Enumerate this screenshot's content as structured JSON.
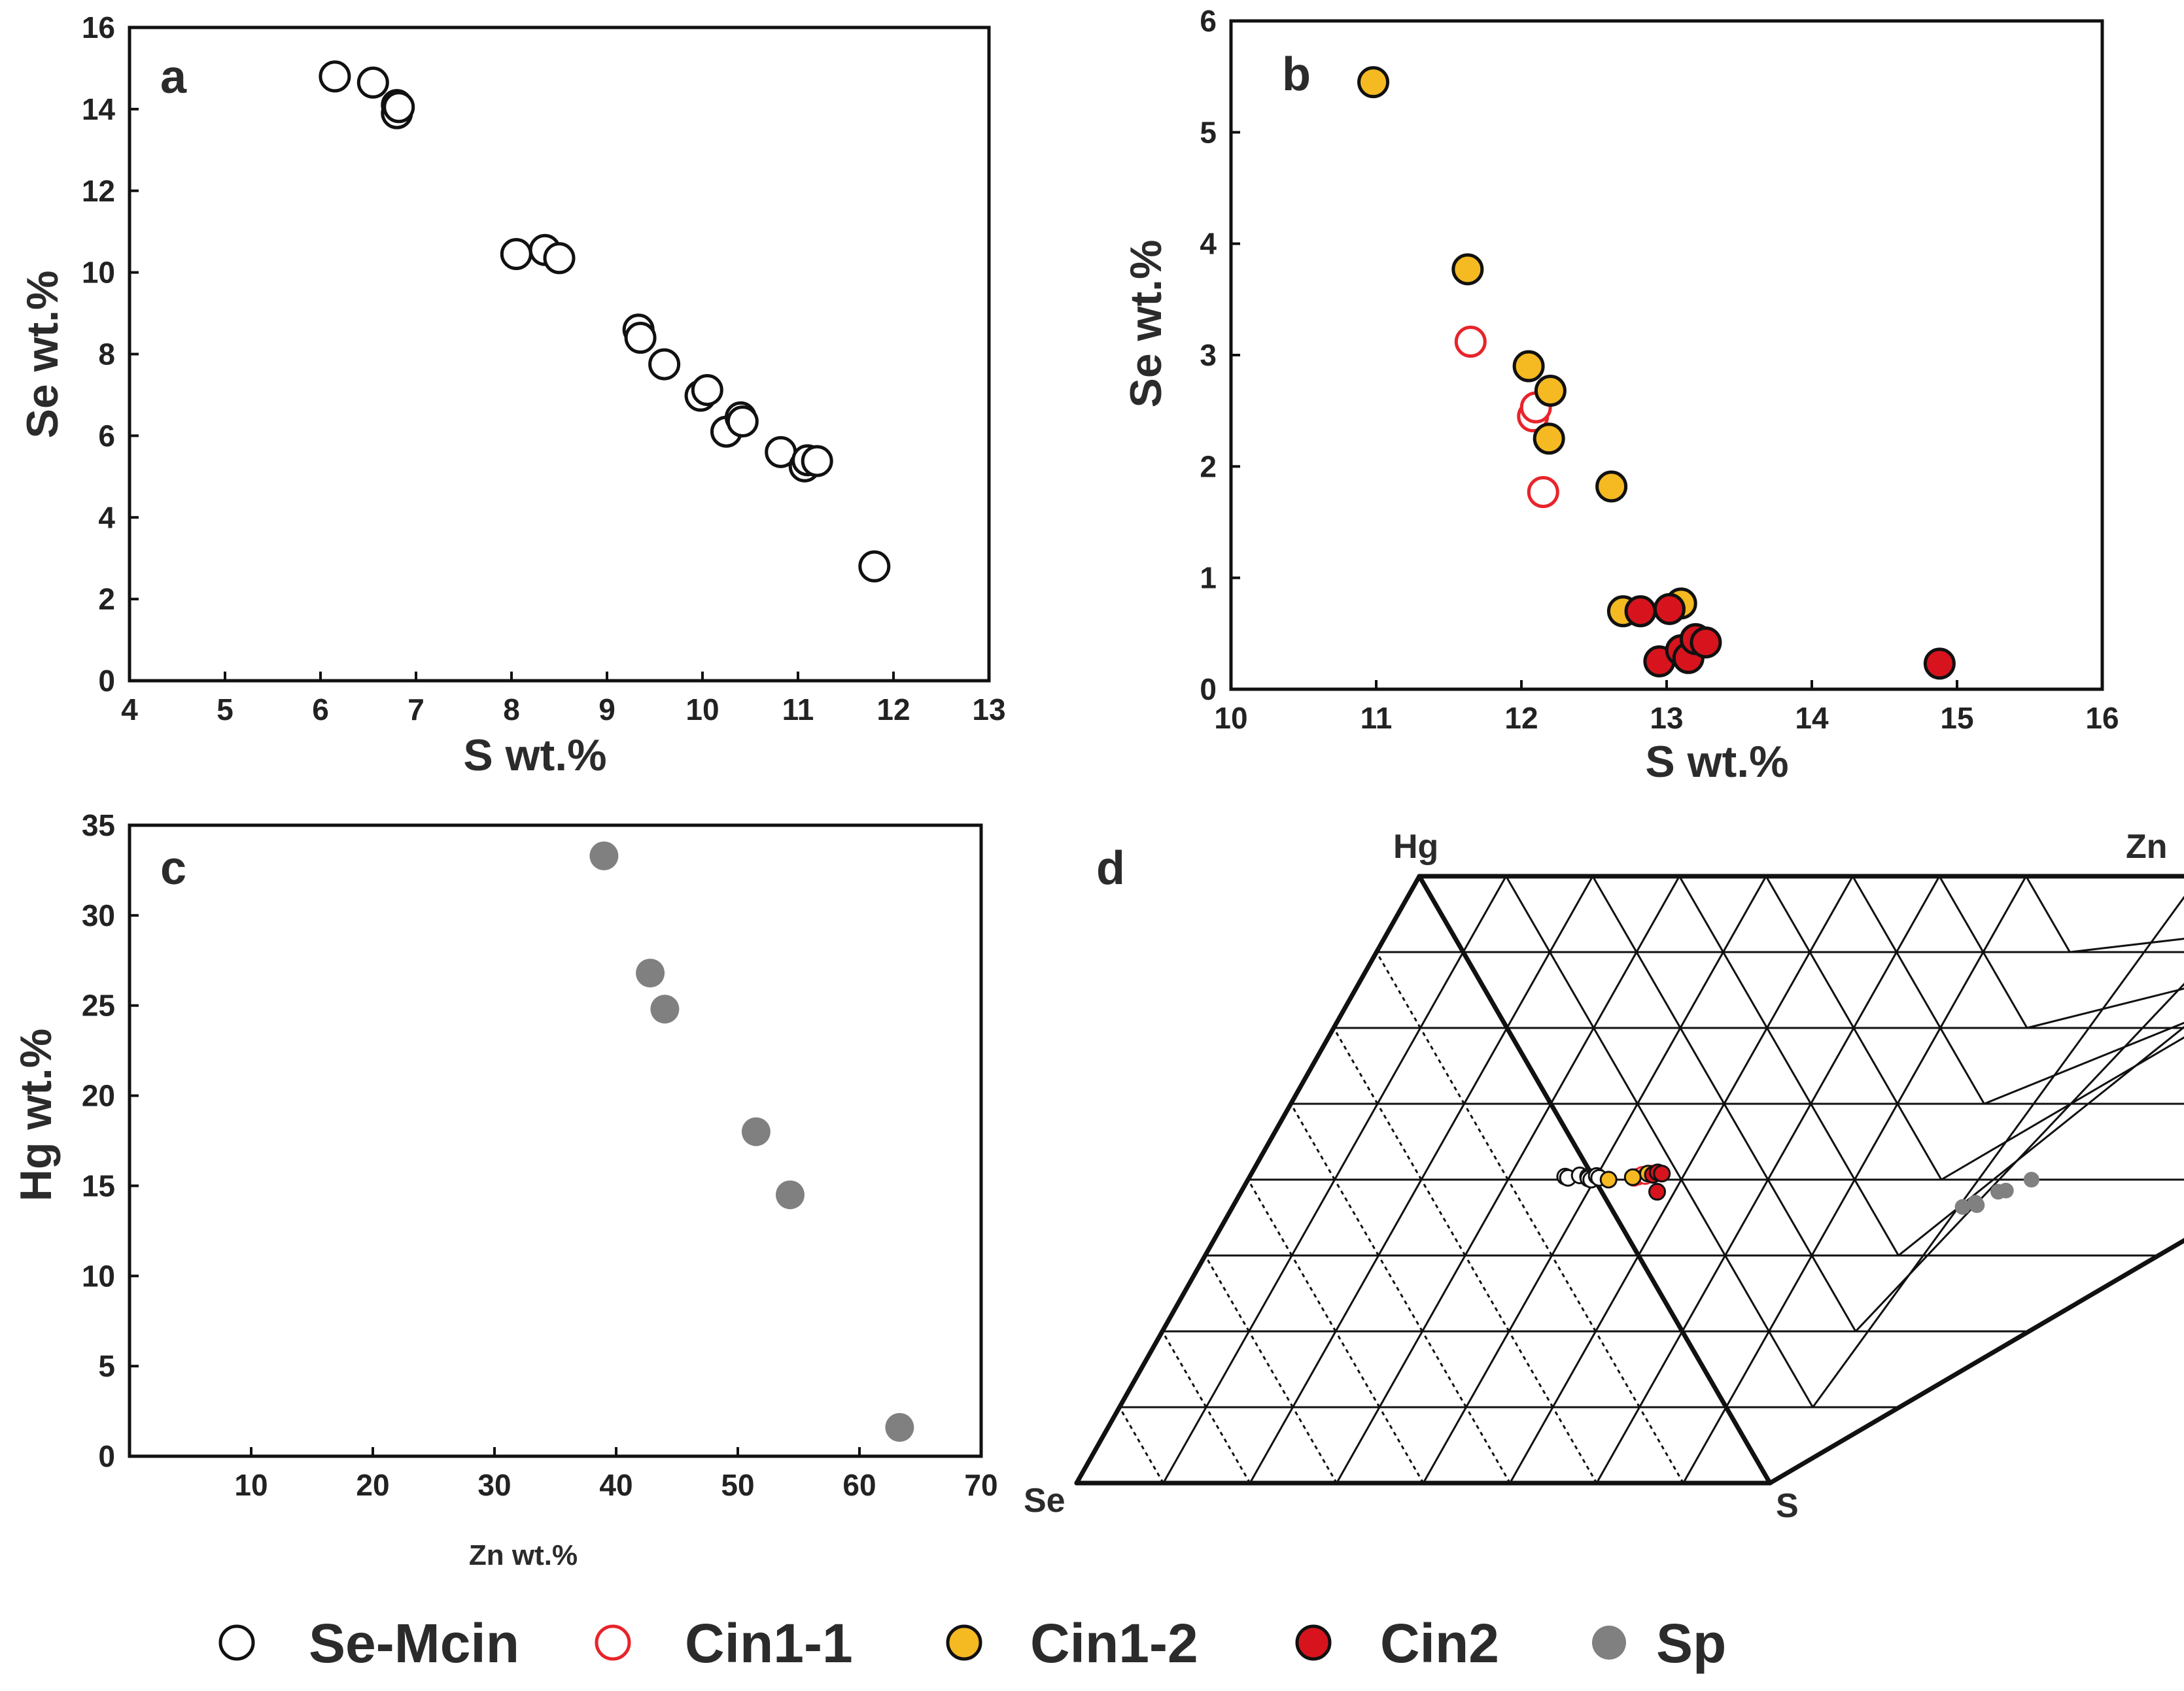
{
  "colors": {
    "se_mcin": "#ffffff",
    "cin1_1": "#e8242a",
    "cin1_2": "#f5b921",
    "cin2": "#d7141d",
    "sp": "#808080"
  },
  "legend": {
    "items": [
      {
        "label": "Se-Mcin"
      },
      {
        "label": "Cin1-1"
      },
      {
        "label": "Cin1-2"
      },
      {
        "label": "Cin2"
      },
      {
        "label": "Sp"
      }
    ]
  },
  "chart_data": [
    {
      "panel": "a",
      "type": "scatter",
      "xlabel": "S wt.%",
      "ylabel": "Se wt.%",
      "xlim": [
        4,
        13
      ],
      "ylim": [
        0,
        16
      ],
      "xticks": [
        "4",
        "5",
        "6",
        "7",
        "8",
        "9",
        "10",
        "11",
        "12",
        "13"
      ],
      "yticks": [
        "0",
        "2",
        "4",
        "6",
        "8",
        "10",
        "12",
        "14",
        "16"
      ],
      "series": [
        {
          "name": "Se-Mcin",
          "x": [
            6.15,
            6.55,
            6.8,
            6.8,
            6.82,
            8.05,
            8.35,
            8.5,
            9.33,
            9.35,
            9.6,
            9.98,
            10.05,
            10.25,
            10.4,
            10.42,
            10.82,
            11.07,
            11.1,
            11.2,
            11.8
          ],
          "y": [
            14.8,
            14.65,
            14.1,
            13.9,
            14.05,
            10.45,
            10.55,
            10.35,
            8.6,
            8.4,
            7.75,
            6.98,
            7.12,
            6.1,
            6.45,
            6.35,
            5.6,
            5.25,
            5.4,
            5.38,
            2.8
          ]
        }
      ]
    },
    {
      "panel": "b",
      "type": "scatter",
      "xlabel": "S wt.%",
      "ylabel": "Se wt.%",
      "xlim": [
        10,
        16
      ],
      "ylim": [
        0,
        6
      ],
      "xticks": [
        "10",
        "11",
        "12",
        "13",
        "14",
        "15",
        "16"
      ],
      "yticks": [
        "0",
        "1",
        "2",
        "3",
        "4",
        "5",
        "6"
      ],
      "series": [
        {
          "name": "Cin1-1",
          "x": [
            11.65,
            12.08,
            12.1,
            12.15
          ],
          "y": [
            3.12,
            2.45,
            2.53,
            1.77
          ]
        },
        {
          "name": "Cin1-2",
          "x": [
            10.98,
            11.63,
            12.05,
            12.2,
            12.19,
            12.62,
            12.7,
            13.1
          ],
          "y": [
            5.45,
            3.77,
            2.9,
            2.68,
            2.25,
            1.82,
            0.7,
            0.77
          ]
        },
        {
          "name": "Cin2",
          "x": [
            12.82,
            13.02,
            12.95,
            13.1,
            13.15,
            13.2,
            13.27,
            14.88
          ],
          "y": [
            0.7,
            0.72,
            0.25,
            0.35,
            0.28,
            0.45,
            0.42,
            0.23
          ]
        }
      ]
    },
    {
      "panel": "c",
      "type": "scatter",
      "xlabel": "Zn wt.%",
      "ylabel": "Hg wt.%",
      "xlim": [
        0,
        70
      ],
      "ylim": [
        0,
        35
      ],
      "xticks": [
        "10",
        "20",
        "30",
        "40",
        "50",
        "60",
        "70"
      ],
      "yticks": [
        "0",
        "5",
        "10",
        "15",
        "20",
        "25",
        "30",
        "35"
      ],
      "series": [
        {
          "name": "Sp",
          "x": [
            39,
            42.8,
            44,
            51.5,
            54.3,
            63.3
          ],
          "y": [
            33.3,
            26.8,
            24.8,
            18,
            14.5,
            1.6
          ]
        }
      ]
    },
    {
      "panel": "d",
      "type": "scatter",
      "vertices": {
        "top_left": "Hg",
        "top_right": "Zn",
        "bottom_left": "Se",
        "bottom_right": "S"
      },
      "series": [
        {
          "name": "Se-Mcin",
          "u": [
            0.455,
            0.46,
            0.475,
            0.488,
            0.49,
            0.495,
            0.5,
            0.505
          ],
          "v": [
            0.505,
            0.503,
            0.507,
            0.505,
            0.502,
            0.5,
            0.506,
            0.503
          ]
        },
        {
          "name": "Cin1-1",
          "u": [
            0.555,
            0.56,
            0.565,
            0.57,
            0.578
          ],
          "v": [
            0.503,
            0.505,
            0.508,
            0.506,
            0.51
          ]
        },
        {
          "name": "Cin1-2",
          "u": [
            0.52,
            0.553,
            0.572
          ],
          "v": [
            0.5,
            0.504,
            0.51
          ]
        },
        {
          "name": "Cin2",
          "u": [
            0.58,
            0.585,
            0.592,
            0.6
          ],
          "v": [
            0.508,
            0.512,
            0.51,
            0.48
          ]
        },
        {
          "name": "Sp",
          "u": [
            1.053,
            1.068,
            1.072,
            1.092,
            1.102,
            1.13
          ],
          "v": [
            0.455,
            0.462,
            0.458,
            0.48,
            0.482,
            0.5
          ]
        }
      ]
    }
  ]
}
